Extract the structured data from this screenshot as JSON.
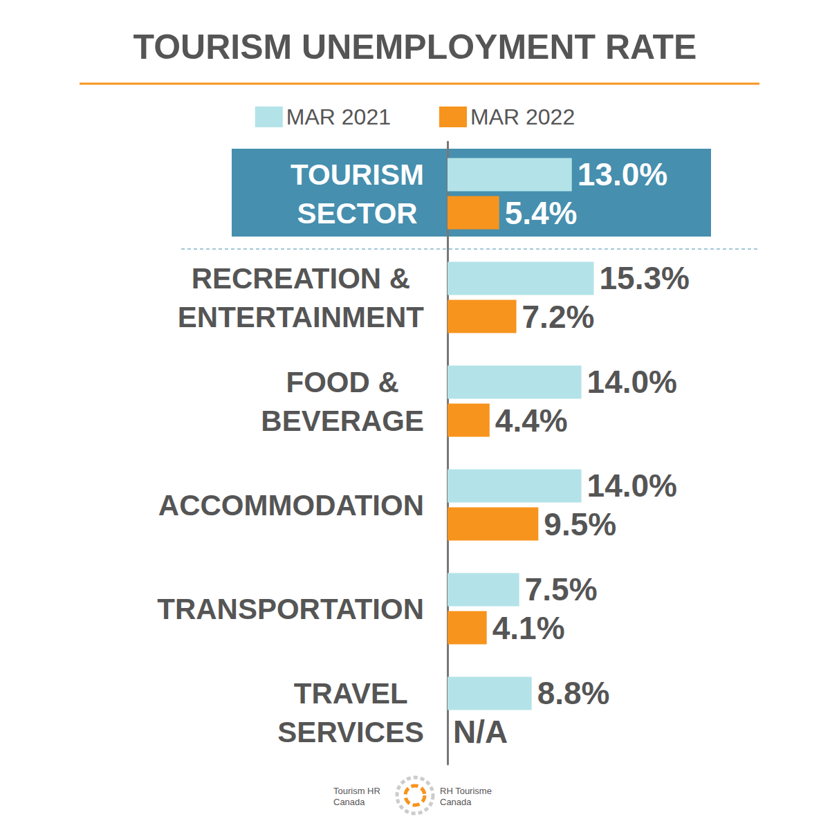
{
  "chart_data": {
    "type": "bar",
    "title": "TOURISM UNEMPLOYMENT RATE",
    "orientation": "horizontal",
    "categories": [
      "TOURISM\nSECTOR",
      "RECREATION &\nENTERTAINMENT",
      "FOOD &\nBEVERAGE",
      "ACCOMMODATION",
      "TRANSPORTATION",
      "TRAVEL\nSERVICES"
    ],
    "series": [
      {
        "name": "MAR 2021",
        "color": "#b3e3e8",
        "values": [
          13.0,
          15.3,
          14.0,
          14.0,
          7.5,
          8.8
        ],
        "value_labels": [
          "13.0%",
          "15.3%",
          "14.0%",
          "14.0%",
          "7.5%",
          "8.8%"
        ]
      },
      {
        "name": "MAR 2022",
        "color": "#f7941d",
        "values": [
          5.4,
          7.2,
          4.4,
          9.5,
          4.1,
          null
        ],
        "value_labels": [
          "5.4%",
          "7.2%",
          "4.4%",
          "9.5%",
          "4.1%",
          "N/A"
        ]
      }
    ],
    "xlim": [
      0,
      40
    ],
    "xticks": [
      0,
      10,
      20,
      30,
      40
    ],
    "grid": false,
    "tick_labels": false,
    "data_labels": true,
    "legend": "top",
    "footer": {
      "left": [
        "Tourism HR",
        "Canada"
      ],
      "right": [
        "RH Tourisme",
        "Canada"
      ]
    }
  }
}
